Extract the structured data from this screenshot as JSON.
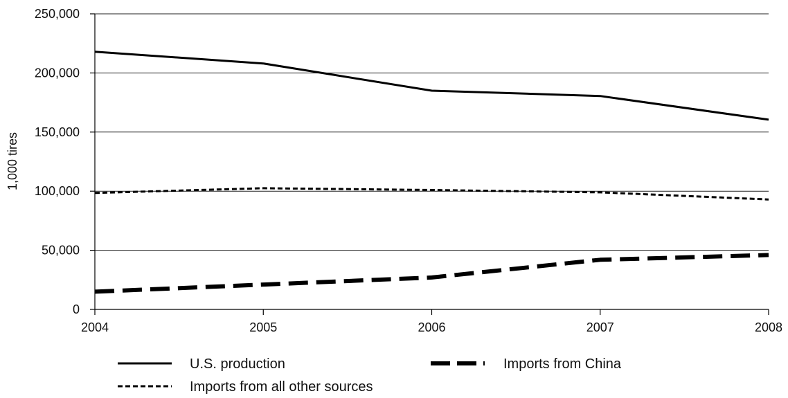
{
  "chart_data": {
    "type": "line",
    "title": "",
    "xlabel": "",
    "ylabel": "1,000 tires",
    "x": [
      2004,
      2005,
      2006,
      2007,
      2008
    ],
    "x_tick_labels": [
      "2004",
      "2005",
      "2006",
      "2007",
      "2008"
    ],
    "ylim": [
      0,
      250000
    ],
    "y_ticks": [
      0,
      50000,
      100000,
      150000,
      200000,
      250000
    ],
    "y_tick_labels": [
      "0",
      "50,000",
      "100,000",
      "150,000",
      "200,000",
      "250,000"
    ],
    "grid": "horizontal",
    "legend_position": "bottom",
    "series": [
      {
        "name": "U.S. production",
        "style": "solid",
        "values": [
          218000,
          208000,
          185000,
          180500,
          160500
        ]
      },
      {
        "name": "Imports from China",
        "style": "long-dash",
        "values": [
          15000,
          21000,
          27000,
          42000,
          46000
        ]
      },
      {
        "name": "Imports from all other sources",
        "style": "short-dash",
        "values": [
          98500,
          102500,
          101000,
          99000,
          93000
        ]
      }
    ],
    "colors": {
      "line": "#000000",
      "grid": "#222222"
    }
  }
}
